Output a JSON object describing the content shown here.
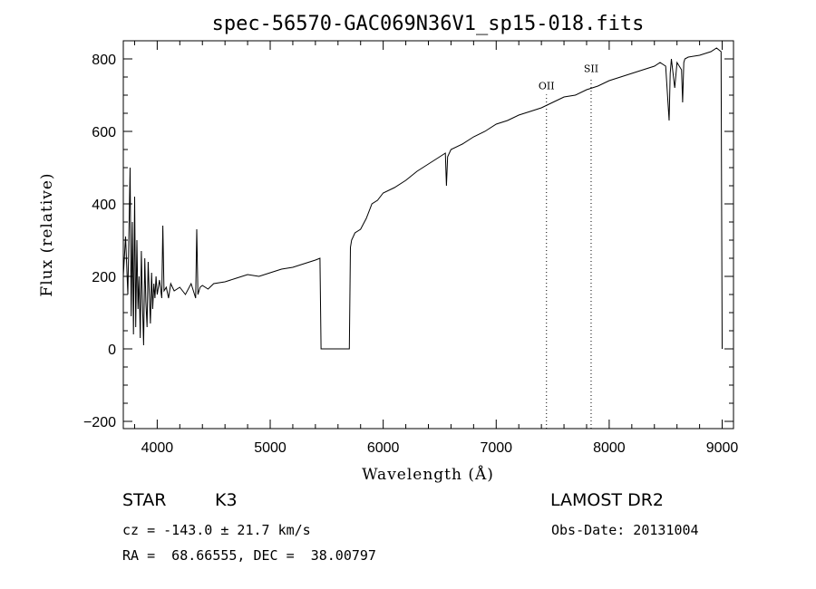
{
  "chart_data": {
    "type": "line",
    "title": "spec-56570-GAC069N36V1_sp15-018.fits",
    "xlabel": "Wavelength (Å)",
    "ylabel": "Flux (relative)",
    "xlim": [
      3700,
      9100
    ],
    "ylim": [
      -220,
      850
    ],
    "x_ticks": [
      4000,
      5000,
      6000,
      7000,
      8000,
      9000
    ],
    "y_ticks": [
      -200,
      0,
      200,
      400,
      600,
      800
    ],
    "grid": false,
    "series": [
      {
        "x": [
          3700,
          3720,
          3740,
          3760,
          3770,
          3780,
          3790,
          3800,
          3810,
          3820,
          3830,
          3840,
          3850,
          3860,
          3870,
          3880,
          3890,
          3900,
          3910,
          3920,
          3930,
          3940,
          3950,
          3960,
          3970,
          3980,
          3990,
          4000,
          4020,
          4040,
          4050,
          4060,
          4080,
          4100,
          4120,
          4150,
          4200,
          4250,
          4300,
          4340,
          4350,
          4360,
          4380,
          4400,
          4450,
          4500,
          4600,
          4700,
          4800,
          4900,
          5000,
          5100,
          5200,
          5300,
          5400,
          5440,
          5450,
          5600,
          5700,
          5710,
          5720,
          5750,
          5800,
          5850,
          5900,
          5950,
          6000,
          6100,
          6200,
          6300,
          6400,
          6500,
          6550,
          6560,
          6570,
          6600,
          6700,
          6800,
          6900,
          7000,
          7100,
          7200,
          7300,
          7400,
          7500,
          7600,
          7700,
          7800,
          7900,
          8000,
          8100,
          8200,
          8300,
          8400,
          8450,
          8500,
          8530,
          8540,
          8550,
          8580,
          8600,
          8640,
          8650,
          8660,
          8670,
          8700,
          8800,
          8850,
          8900,
          8950,
          8990,
          8995,
          9000
        ],
        "y": [
          200,
          310,
          150,
          500,
          90,
          350,
          40,
          420,
          60,
          300,
          110,
          200,
          30,
          270,
          120,
          10,
          250,
          130,
          60,
          240,
          150,
          70,
          210,
          110,
          180,
          140,
          200,
          150,
          190,
          140,
          340,
          160,
          170,
          140,
          180,
          160,
          170,
          150,
          180,
          140,
          330,
          150,
          170,
          175,
          165,
          180,
          185,
          195,
          205,
          200,
          210,
          220,
          225,
          235,
          245,
          250,
          0,
          0,
          0,
          280,
          300,
          320,
          330,
          360,
          400,
          410,
          430,
          445,
          465,
          490,
          510,
          530,
          540,
          450,
          530,
          550,
          565,
          585,
          600,
          620,
          630,
          645,
          655,
          665,
          680,
          695,
          700,
          715,
          725,
          740,
          750,
          760,
          770,
          780,
          790,
          780,
          630,
          760,
          800,
          720,
          790,
          770,
          680,
          790,
          800,
          805,
          810,
          815,
          820,
          830,
          820,
          400,
          0
        ]
      }
    ],
    "annotations": [
      {
        "text": "OII",
        "x": 7445
      },
      {
        "text": "SII",
        "x": 7840
      }
    ]
  },
  "info": {
    "class_label": "STAR",
    "subclass_label": "K3",
    "cz_text": "cz = -143.0 ± 21.7 km/s",
    "radec_text": "RA =  68.66555, DEC =  38.00797",
    "survey_label": "LAMOST DR2",
    "obsdate_text": "Obs-Date: 20131004"
  }
}
